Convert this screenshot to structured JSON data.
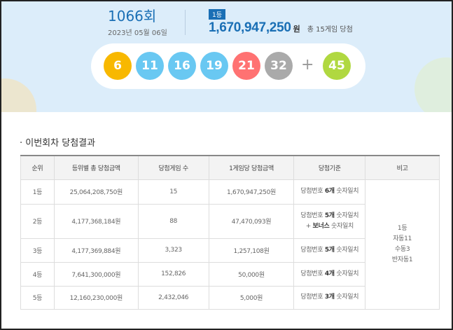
{
  "draw": {
    "number": "1066회",
    "date": "2023년 05월 06일",
    "rank_badge": "1등",
    "prize": "1,670,947,250",
    "prize_unit": "원",
    "games": "총 15게임 당첨"
  },
  "balls": [
    {
      "n": "6",
      "color": "#f8b800"
    },
    {
      "n": "11",
      "color": "#69c8f2"
    },
    {
      "n": "16",
      "color": "#69c8f2"
    },
    {
      "n": "19",
      "color": "#69c8f2"
    },
    {
      "n": "21",
      "color": "#ff7272"
    },
    {
      "n": "32",
      "color": "#aaaaaa"
    }
  ],
  "plus": "+",
  "bonus": {
    "n": "45",
    "color": "#b0d840"
  },
  "section_title": "· 이번회차 당첨결과",
  "table": {
    "headers": [
      "순위",
      "등위별 총 당첨금액",
      "당첨게임 수",
      "1게임당 당첨금액",
      "당첨기준",
      "비고"
    ],
    "rows": [
      {
        "rank": "1등",
        "total": "25,064,208,750원",
        "count": "15",
        "per": "1,670,947,250원",
        "c1": "당첨번호 ",
        "cb": "6개",
        "c2": " 숫자일치"
      },
      {
        "rank": "2등",
        "total": "4,177,368,184원",
        "count": "88",
        "per": "47,470,093원",
        "c1": "당첨번호 ",
        "cb": "5개",
        "c2": " 숫자일치",
        "d1": "+ ",
        "db": "보너스",
        "d2": " 숫자일치"
      },
      {
        "rank": "3등",
        "total": "4,177,369,884원",
        "count": "3,323",
        "per": "1,257,108원",
        "c1": "당첨번호 ",
        "cb": "5개",
        "c2": " 숫자일치"
      },
      {
        "rank": "4등",
        "total": "7,641,300,000원",
        "count": "152,826",
        "per": "50,000원",
        "c1": "당첨번호 ",
        "cb": "4개",
        "c2": " 숫자일치"
      },
      {
        "rank": "5등",
        "total": "12,160,230,000원",
        "count": "2,432,046",
        "per": "5,000원",
        "c1": "당첨번호 ",
        "cb": "3개",
        "c2": " 숫자일치"
      }
    ],
    "note": [
      "1등",
      "자동11",
      "수동3",
      "반자동1"
    ]
  }
}
